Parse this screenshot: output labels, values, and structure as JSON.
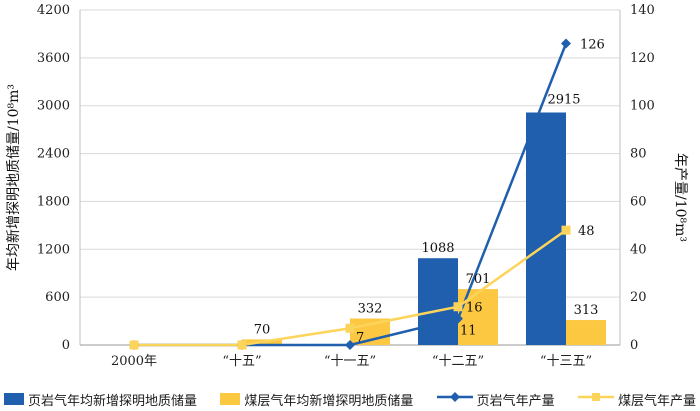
{
  "chart_data": {
    "type": "bar+line",
    "categories": [
      "2000年",
      "“十五”",
      "“十一五”",
      "“十二五”",
      "“十三五”"
    ],
    "y_left": {
      "label": "年均新增探明地质储量/10⁸m³",
      "ylim": [
        0,
        4200
      ],
      "ticks": [
        0,
        600,
        1200,
        1800,
        2400,
        3000,
        3600,
        4200
      ]
    },
    "y_right": {
      "label": "年产量/10⁸m³",
      "ylim": [
        0,
        140
      ],
      "ticks": [
        0,
        20,
        40,
        60,
        80,
        100,
        120,
        140
      ]
    },
    "series": [
      {
        "name": "页岩气年均新增探明地质储量",
        "kind": "bar",
        "axis": "left",
        "color": "#1f5fae",
        "values": [
          0,
          0,
          0,
          1088,
          2915
        ],
        "labels": [
          "",
          "",
          "",
          "1088",
          "2915"
        ]
      },
      {
        "name": "煤层气年均新增探明地质储量",
        "kind": "bar",
        "axis": "left",
        "color": "#fcc842",
        "values": [
          0,
          70,
          332,
          701,
          313
        ],
        "labels": [
          "",
          "70",
          "332",
          "701",
          "313"
        ]
      },
      {
        "name": "页岩气年产量",
        "kind": "line",
        "axis": "right",
        "color": "#1f5fae",
        "marker": "diamond",
        "values": [
          0,
          0,
          0,
          11,
          126
        ],
        "labels": [
          "",
          "",
          "",
          "11",
          "126"
        ]
      },
      {
        "name": "煤层气年产量",
        "kind": "line",
        "axis": "right",
        "color": "#fcd45a",
        "marker": "square",
        "values": [
          0,
          0,
          7,
          16,
          48
        ],
        "labels": [
          "",
          "",
          "7",
          "16",
          "48"
        ]
      }
    ],
    "grid": true,
    "legend_position": "bottom"
  }
}
